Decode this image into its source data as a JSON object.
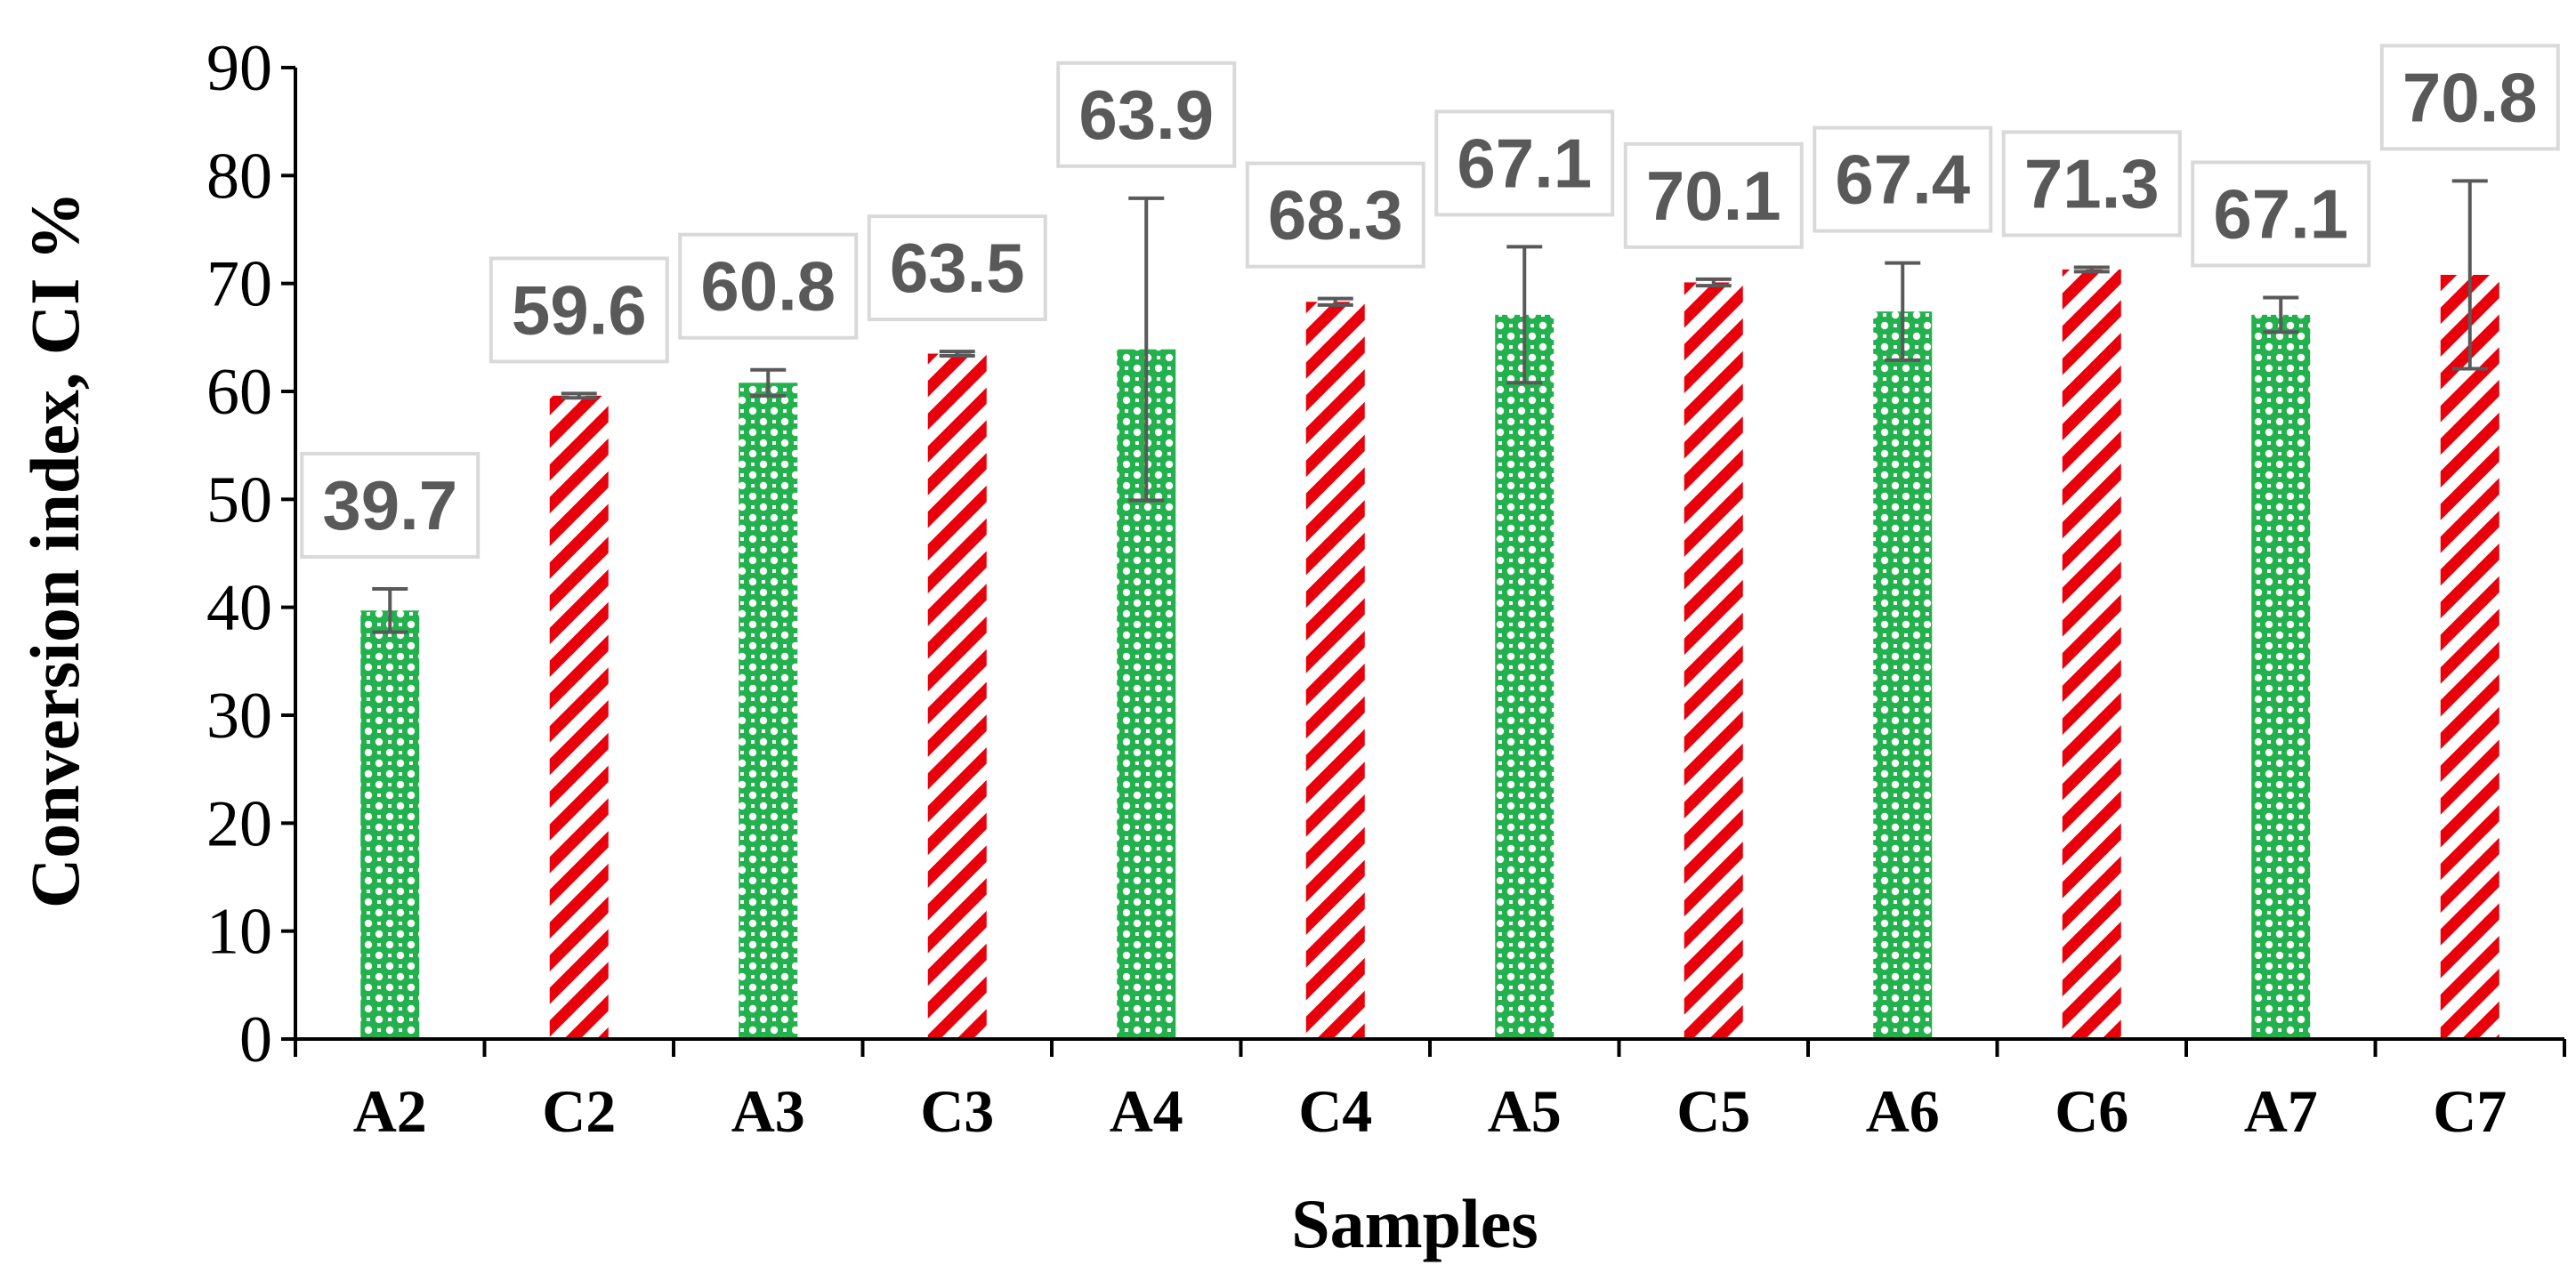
{
  "chart_data": {
    "type": "bar",
    "title": "",
    "xlabel": "Samples",
    "ylabel": "Conversion index, CI %",
    "ylim": [
      0,
      90
    ],
    "ytick_step": 10,
    "yticks": [
      "0",
      "10",
      "20",
      "30",
      "40",
      "50",
      "60",
      "70",
      "80",
      "90"
    ],
    "grid": false,
    "legend": "none",
    "categories": [
      "A2",
      "C2",
      "A3",
      "C3",
      "A4",
      "C4",
      "A5",
      "C5",
      "A6",
      "C6",
      "A7",
      "C7"
    ],
    "values": [
      39.7,
      59.6,
      60.8,
      63.5,
      63.9,
      68.3,
      67.1,
      70.1,
      67.4,
      71.3,
      67.1,
      70.8
    ],
    "value_labels": [
      "39.7",
      "59.6",
      "60.8",
      "63.5",
      "63.9",
      "68.3",
      "67.1",
      "70.1",
      "67.4",
      "71.3",
      "67.1",
      "70.8"
    ],
    "error": [
      2.0,
      0.2,
      1.2,
      0.2,
      14.0,
      0.3,
      6.3,
      0.3,
      4.5,
      0.2,
      1.6,
      8.7
    ],
    "series_colors": {
      "A": "#22b14c",
      "C": "#e8000b"
    },
    "errorbar_color": "#595959",
    "label_box_border": "#d9d9d9"
  }
}
